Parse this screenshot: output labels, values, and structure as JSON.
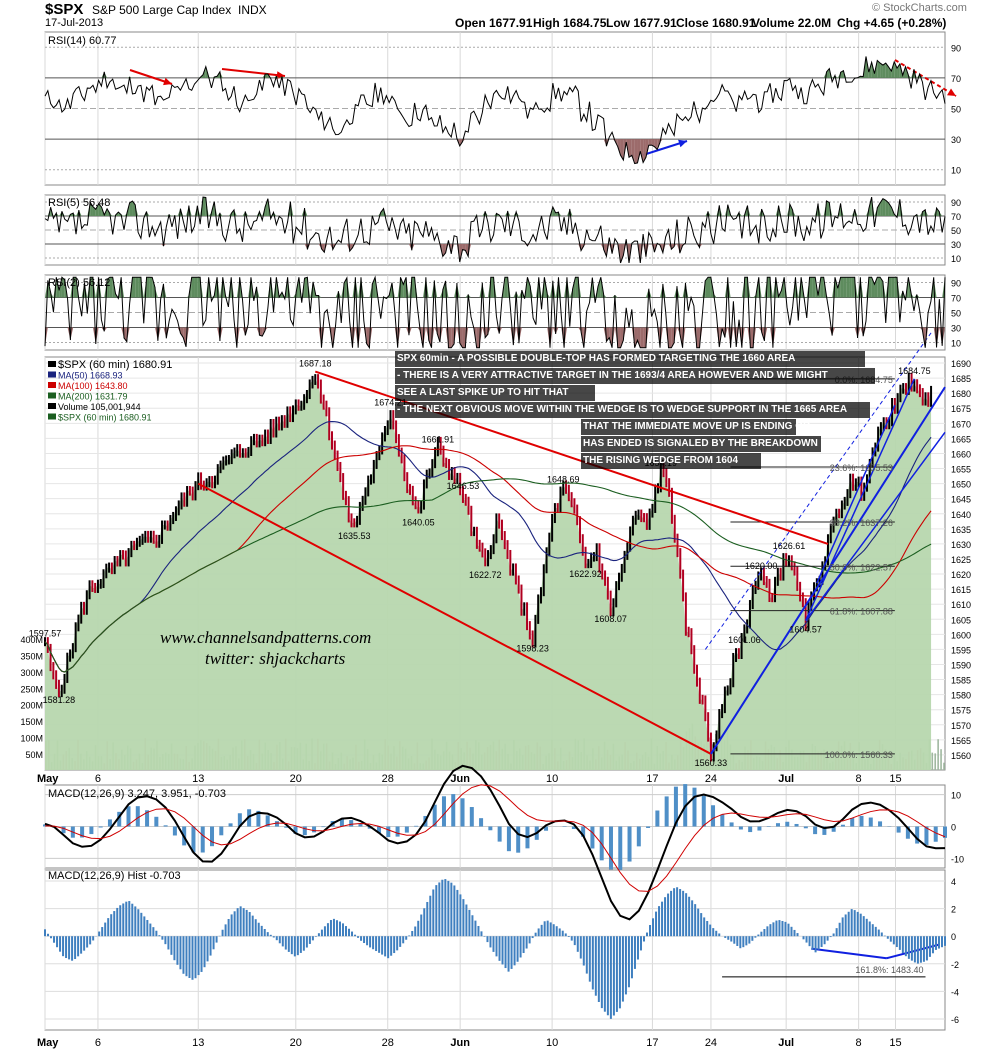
{
  "header": {
    "symbol": "$SPX",
    "name": "S&P 500 Large Cap Index",
    "exchange": "INDX",
    "date": "17-Jul-2013",
    "open": "Open 1677.91",
    "high": "High 1684.75",
    "low": "Low 1677.91",
    "close": "Close 1680.91",
    "volume": "Volume 22.0M",
    "change": "Chg +4.65 (+0.28%)",
    "credit": "© StockCharts.com"
  },
  "panels": {
    "rsi14": {
      "label": "RSI(14) 60.77",
      "levels": [
        "90",
        "70",
        "50",
        "30",
        "10"
      ]
    },
    "rsi5": {
      "label": "RSI(5) 56.48",
      "levels": [
        "90",
        "70",
        "50",
        "30",
        "10"
      ]
    },
    "rsi2": {
      "label": "RSI(2) 56.12",
      "levels": [
        "90",
        "70",
        "50",
        "30",
        "10"
      ]
    },
    "macd": {
      "label": "MACD(12,26,9) 3.247, 3.951, -0.703",
      "levels": [
        "10",
        "0",
        "-10"
      ]
    },
    "hist": {
      "label": "MACD(12,26,9) Hist -0.703",
      "levels": [
        "4",
        "2",
        "0",
        "-2",
        "-4",
        "-6"
      ],
      "fib_label": "161.8%: 1483.40"
    }
  },
  "legend": [
    {
      "text": "$SPX (60 min) 1680.91",
      "color": "#000000"
    },
    {
      "text": "MA(50) 1668.93",
      "color": "#1a237e"
    },
    {
      "text": "MA(100) 1643.80",
      "color": "#cc0000"
    },
    {
      "text": "MA(200) 1631.79",
      "color": "#1b5e20"
    },
    {
      "text": "Volume 105,001,944",
      "color": "#000000"
    },
    {
      "text": "$SPX (60 min) 1680.91",
      "color": "#1b5e20"
    }
  ],
  "annotation": [
    "SPX 60min - A POSSIBLE DOUBLE-TOP HAS FORMED TARGETING THE 1660 AREA",
    "- THERE IS A VERY ATTRACTIVE TARGET IN THE 1693/4 AREA HOWEVER AND WE MIGHT",
    "SEE A LAST SPIKE UP TO HIT THAT",
    "- THE NEXT OBVIOUS MOVE WITHIN THE WEDGE IS TO WEDGE SUPPORT IN THE 1665 AREA",
    "THAT THE IMMEDIATE MOVE UP IS ENDING OR",
    "HAS ENDED IS SIGNALED BY THE BREAKDOWN OF",
    "THE RISING WEDGE FROM 1604"
  ],
  "watermark": [
    "www.channelsandpatterns.com",
    "twitter: shjackcharts"
  ],
  "chart_data": {
    "type": "line",
    "title": "$SPX S&P 500 Large Cap Index INDX (60 min)",
    "x_labels": [
      "May",
      "6",
      "13",
      "20",
      "28",
      "Jun",
      "10",
      "17",
      "24",
      "Jul",
      "8",
      "15"
    ],
    "y_ticks": [
      1560,
      1565,
      1570,
      1575,
      1580,
      1585,
      1590,
      1595,
      1600,
      1605,
      1610,
      1615,
      1620,
      1625,
      1630,
      1635,
      1640,
      1645,
      1650,
      1655,
      1660,
      1665,
      1670,
      1675,
      1680,
      1685,
      1690
    ],
    "ylim": [
      1555,
      1692
    ],
    "volume_ticks": [
      "400M",
      "350M",
      "300M",
      "250M",
      "200M",
      "150M",
      "100M",
      "50M"
    ],
    "price_path": [
      [
        0,
        1597.57
      ],
      [
        3,
        1585
      ],
      [
        5,
        1581.28
      ],
      [
        8,
        1590
      ],
      [
        12,
        1605
      ],
      [
        16,
        1615
      ],
      [
        22,
        1620
      ],
      [
        28,
        1625
      ],
      [
        34,
        1630
      ],
      [
        40,
        1632
      ],
      [
        46,
        1640
      ],
      [
        50,
        1645
      ],
      [
        55,
        1650
      ],
      [
        60,
        1652
      ],
      [
        66,
        1658
      ],
      [
        72,
        1662
      ],
      [
        78,
        1665
      ],
      [
        84,
        1670
      ],
      [
        90,
        1676
      ],
      [
        94,
        1680
      ],
      [
        97,
        1687.18
      ],
      [
        100,
        1676
      ],
      [
        104,
        1660
      ],
      [
        108,
        1642
      ],
      [
        111,
        1635.53
      ],
      [
        115,
        1648
      ],
      [
        120,
        1660
      ],
      [
        124,
        1674.21
      ],
      [
        127,
        1662
      ],
      [
        130,
        1650
      ],
      [
        134,
        1640.05
      ],
      [
        137,
        1652
      ],
      [
        141,
        1661.91
      ],
      [
        145,
        1655
      ],
      [
        150,
        1646.53
      ],
      [
        154,
        1632
      ],
      [
        158,
        1622.72
      ],
      [
        162,
        1638
      ],
      [
        166,
        1626
      ],
      [
        171,
        1610
      ],
      [
        175,
        1598.23
      ],
      [
        178,
        1615
      ],
      [
        182,
        1638
      ],
      [
        186,
        1648.69
      ],
      [
        190,
        1640
      ],
      [
        194,
        1622.92
      ],
      [
        198,
        1628
      ],
      [
        203,
        1608.07
      ],
      [
        207,
        1622
      ],
      [
        212,
        1640
      ],
      [
        216,
        1636
      ],
      [
        221,
        1654.19
      ],
      [
        224,
        1648
      ],
      [
        227,
        1625
      ],
      [
        230,
        1603
      ],
      [
        234,
        1585
      ],
      [
        237,
        1572
      ],
      [
        239,
        1560.33
      ],
      [
        243,
        1575
      ],
      [
        247,
        1590
      ],
      [
        251,
        1601.06
      ],
      [
        254,
        1615
      ],
      [
        257,
        1620
      ],
      [
        260,
        1612
      ],
      [
        263,
        1620
      ],
      [
        267,
        1626.61
      ],
      [
        270,
        1615
      ],
      [
        273,
        1604.57
      ],
      [
        277,
        1617
      ],
      [
        281,
        1630
      ],
      [
        285,
        1642
      ],
      [
        289,
        1650
      ],
      [
        293,
        1648
      ],
      [
        297,
        1660
      ],
      [
        301,
        1670
      ],
      [
        305,
        1676
      ],
      [
        309,
        1682
      ],
      [
        312,
        1684.75
      ],
      [
        315,
        1676
      ],
      [
        318,
        1680.91
      ]
    ],
    "labels": [
      {
        "text": "1597.57",
        "x": 0,
        "y": 1597.57
      },
      {
        "text": "1581.28",
        "x": 5,
        "y": 1581.28
      },
      {
        "text": "1687.18",
        "x": 97,
        "y": 1687.18
      },
      {
        "text": "1635.53",
        "x": 111,
        "y": 1635.53
      },
      {
        "text": "1674.21",
        "x": 124,
        "y": 1674.21
      },
      {
        "text": "1640.05",
        "x": 134,
        "y": 1640.05
      },
      {
        "text": "1661.91",
        "x": 141,
        "y": 1661.91
      },
      {
        "text": "1646.53",
        "x": 150,
        "y": 1646.53
      },
      {
        "text": "1622.72",
        "x": 158,
        "y": 1622.72
      },
      {
        "text": "1598.23",
        "x": 175,
        "y": 1598.23
      },
      {
        "text": "1648.69",
        "x": 186,
        "y": 1648.69
      },
      {
        "text": "1622.92",
        "x": 194,
        "y": 1622.92
      },
      {
        "text": "1608.07",
        "x": 203,
        "y": 1608.07
      },
      {
        "text": "1654.19",
        "x": 221,
        "y": 1654.19
      },
      {
        "text": "1560.33",
        "x": 239,
        "y": 1560.33
      },
      {
        "text": "1620.00",
        "x": 257,
        "y": 1620
      },
      {
        "text": "1601.06",
        "x": 251,
        "y": 1601.06
      },
      {
        "text": "1626.61",
        "x": 267,
        "y": 1626.61
      },
      {
        "text": "1604.57",
        "x": 273,
        "y": 1604.57
      },
      {
        "text": "1684.75",
        "x": 312,
        "y": 1684.75
      }
    ],
    "fib_levels": [
      {
        "text": "0.0%: 1684.75",
        "value": 1684.75
      },
      {
        "text": "23.6%: 1655.53",
        "value": 1655.53
      },
      {
        "text": "38.2%: 1637.26",
        "value": 1637.26
      },
      {
        "text": "50.0%: 1622.57",
        "value": 1622.57
      },
      {
        "text": "61.8%: 1607.88",
        "value": 1607.88
      },
      {
        "text": "100.0%: 1560.33",
        "value": 1560.33
      }
    ],
    "trendlines_red": [
      {
        "from": [
          97,
          1687.18
        ],
        "to": [
          281,
          1630
        ]
      },
      {
        "from": [
          55,
          1650
        ],
        "to": [
          239,
          1560.33
        ]
      }
    ],
    "trendlines_blue": [
      {
        "from": [
          239,
          1560.33
        ],
        "to": [
          323,
          1682
        ]
      },
      {
        "from": [
          273,
          1604.57
        ],
        "to": [
          323,
          1667
        ]
      },
      {
        "from": [
          273,
          1604.57
        ],
        "to": [
          312,
          1684.75
        ]
      },
      {
        "from": [
          277,
          1617
        ],
        "to": [
          305,
          1676
        ]
      }
    ],
    "rsi14": [
      56,
      52,
      58,
      64,
      70,
      62,
      66,
      60,
      54,
      60,
      66,
      72,
      68,
      60,
      54,
      62,
      70,
      64,
      58,
      48,
      42,
      36,
      46,
      54,
      60,
      52,
      44,
      48,
      40,
      36,
      30,
      44,
      56,
      62,
      58,
      48,
      54,
      60,
      58,
      48,
      40,
      28,
      22,
      20,
      26,
      34,
      42,
      48,
      56,
      60,
      52,
      58,
      54,
      60,
      66,
      60,
      64,
      70,
      74,
      72,
      78,
      80,
      76,
      70,
      62,
      60
    ],
    "macd_hist": [
      0.5,
      -0.5,
      -1.5,
      -1.8,
      -1.2,
      -0.5,
      0.5,
      1.5,
      2.2,
      2.6,
      2.0,
      1.2,
      0.4,
      -0.6,
      -1.8,
      -2.8,
      -3.2,
      -2.5,
      -1.2,
      0.3,
      1.5,
      2.2,
      1.8,
      1.0,
      0.3,
      -0.3,
      -1.0,
      -1.5,
      -1.0,
      -0.2,
      0.6,
      1.3,
      1.0,
      0.4,
      -0.3,
      -0.8,
      -1.2,
      -1.6,
      -1.0,
      -0.2,
      0.8,
      2.2,
      3.6,
      4.2,
      3.8,
      2.8,
      1.6,
      0.4,
      -0.8,
      -1.8,
      -2.6,
      -1.8,
      -0.8,
      0.4,
      1.2,
      0.8,
      0.3,
      -0.5,
      -2.0,
      -3.8,
      -5.2,
      -6.0,
      -5.2,
      -3.6,
      -1.5,
      0.5,
      2.0,
      3.0,
      3.6,
      3.2,
      2.4,
      1.4,
      0.6,
      0.0,
      -0.4,
      -0.9,
      -0.5,
      0.2,
      0.8,
      1.2,
      1.0,
      0.3,
      -0.4,
      -1.2,
      -0.6,
      0.2,
      1.4,
      2.0,
      1.6,
      1.0,
      0.4,
      -0.3,
      -0.9,
      -1.6,
      -2.0,
      -1.8,
      -1.0,
      -0.7
    ]
  }
}
